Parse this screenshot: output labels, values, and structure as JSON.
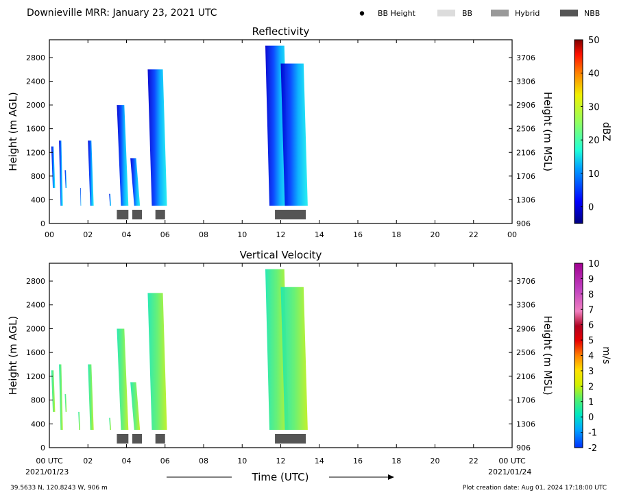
{
  "header": {
    "title": "Downieville MRR:  January 23, 2021 UTC"
  },
  "legend": [
    {
      "label": "BB Height",
      "marker": "dot",
      "color": "#000000"
    },
    {
      "label": "BB",
      "marker": "box",
      "color": "#dcdcdc"
    },
    {
      "label": "Hybrid",
      "marker": "box",
      "color": "#999999"
    },
    {
      "label": "NBB",
      "marker": "box",
      "color": "#555555"
    }
  ],
  "footer": {
    "location": "39.5633 N, 120.8243 W, 906 m",
    "creation": "Plot creation date: Aug 01, 2024 17:18:00 UTC",
    "date_start": "2021/01/23",
    "date_end": "2021/01/24",
    "xlabel": "Time (UTC)"
  },
  "chart_data": [
    {
      "type": "heatmap",
      "title": "Reflectivity",
      "ylabel": "Height (m AGL)",
      "y2label": "Height (m MSL)",
      "xlim": [
        0,
        24
      ],
      "ylim": [
        0,
        3100
      ],
      "x_ticks": [
        "00",
        "02",
        "04",
        "06",
        "08",
        "10",
        "12",
        "14",
        "16",
        "18",
        "20",
        "22",
        "00"
      ],
      "y_ticks": [
        0,
        400,
        800,
        1200,
        1600,
        2000,
        2400,
        2800
      ],
      "y2_ticks": [
        906,
        1306,
        1706,
        2106,
        2506,
        2906,
        3306,
        3706
      ],
      "colorbar": {
        "label": "dBZ",
        "min": -5,
        "max": 50,
        "ticks": [
          0,
          10,
          20,
          30,
          40,
          50
        ]
      },
      "echo_regions": [
        {
          "x_start": 0.1,
          "x_end": 0.3,
          "y_bottom": 600,
          "y_top": 1300
        },
        {
          "x_start": 0.5,
          "x_end": 0.7,
          "y_bottom": 300,
          "y_top": 1400
        },
        {
          "x_start": 0.8,
          "x_end": 0.9,
          "y_bottom": 600,
          "y_top": 900
        },
        {
          "x_start": 1.6,
          "x_end": 1.65,
          "y_bottom": 300,
          "y_top": 600
        },
        {
          "x_start": 2.0,
          "x_end": 2.3,
          "y_bottom": 300,
          "y_top": 1400
        },
        {
          "x_start": 3.1,
          "x_end": 3.2,
          "y_bottom": 300,
          "y_top": 500
        },
        {
          "x_start": 3.5,
          "x_end": 4.1,
          "y_bottom": 300,
          "y_top": 2000
        },
        {
          "x_start": 4.2,
          "x_end": 4.7,
          "y_bottom": 300,
          "y_top": 1100
        },
        {
          "x_start": 5.1,
          "x_end": 6.1,
          "y_bottom": 300,
          "y_top": 2600
        },
        {
          "x_start": 11.2,
          "x_end": 12.4,
          "y_bottom": 300,
          "y_top": 3000
        },
        {
          "x_start": 12.0,
          "x_end": 13.4,
          "y_bottom": 300,
          "y_top": 2700
        }
      ],
      "bright_band_type_bars": [
        {
          "type": "NBB",
          "x_start": 3.5,
          "x_end": 4.1
        },
        {
          "type": "NBB",
          "x_start": 4.3,
          "x_end": 4.8
        },
        {
          "type": "NBB",
          "x_start": 5.5,
          "x_end": 6.0
        },
        {
          "type": "NBB",
          "x_start": 11.7,
          "x_end": 13.3
        }
      ]
    },
    {
      "type": "heatmap",
      "title": "Vertical Velocity",
      "ylabel": "Height (m AGL)",
      "y2label": "Height (m MSL)",
      "xlim": [
        0,
        24
      ],
      "ylim": [
        0,
        3100
      ],
      "x_ticks": [
        "00 UTC",
        "02",
        "04",
        "06",
        "08",
        "10",
        "12",
        "14",
        "16",
        "18",
        "20",
        "22",
        "00 UTC"
      ],
      "y_ticks": [
        0,
        400,
        800,
        1200,
        1600,
        2000,
        2400,
        2800
      ],
      "y2_ticks": [
        906,
        1306,
        1706,
        2106,
        2506,
        2906,
        3306,
        3706
      ],
      "colorbar": {
        "label": "m/s",
        "min": -2,
        "max": 10,
        "ticks": [
          -2,
          -1,
          0,
          1,
          2,
          3,
          4,
          5,
          6,
          7,
          8,
          9,
          10
        ]
      },
      "echo_regions": [
        {
          "x_start": 0.1,
          "x_end": 0.3,
          "y_bottom": 600,
          "y_top": 1300
        },
        {
          "x_start": 0.5,
          "x_end": 0.7,
          "y_bottom": 300,
          "y_top": 1400
        },
        {
          "x_start": 0.8,
          "x_end": 0.9,
          "y_bottom": 600,
          "y_top": 900
        },
        {
          "x_start": 1.5,
          "x_end": 1.6,
          "y_bottom": 300,
          "y_top": 600
        },
        {
          "x_start": 2.0,
          "x_end": 2.3,
          "y_bottom": 300,
          "y_top": 1400
        },
        {
          "x_start": 3.1,
          "x_end": 3.2,
          "y_bottom": 300,
          "y_top": 500
        },
        {
          "x_start": 3.5,
          "x_end": 4.1,
          "y_bottom": 300,
          "y_top": 2000
        },
        {
          "x_start": 4.2,
          "x_end": 4.7,
          "y_bottom": 300,
          "y_top": 1100
        },
        {
          "x_start": 5.1,
          "x_end": 6.1,
          "y_bottom": 300,
          "y_top": 2600
        },
        {
          "x_start": 11.2,
          "x_end": 12.4,
          "y_bottom": 300,
          "y_top": 3000
        },
        {
          "x_start": 12.0,
          "x_end": 13.4,
          "y_bottom": 300,
          "y_top": 2700
        }
      ],
      "bright_band_type_bars": [
        {
          "type": "NBB",
          "x_start": 3.5,
          "x_end": 4.1
        },
        {
          "type": "NBB",
          "x_start": 4.3,
          "x_end": 4.8
        },
        {
          "type": "NBB",
          "x_start": 5.5,
          "x_end": 6.0
        },
        {
          "type": "NBB",
          "x_start": 11.7,
          "x_end": 13.3
        }
      ]
    }
  ]
}
